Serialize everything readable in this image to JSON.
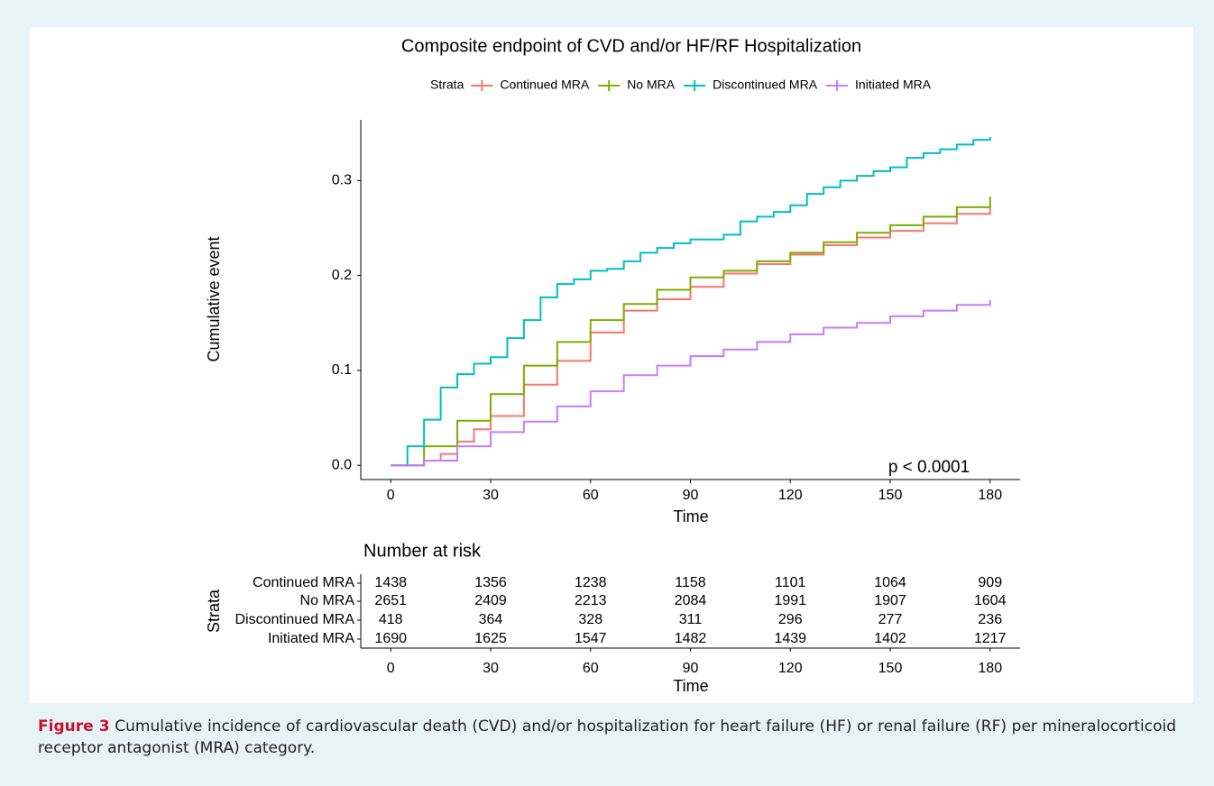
{
  "chart_data": [
    {
      "type": "line",
      "step": true,
      "title": "Composite endpoint of CVD and/or HF/RF Hospitalization",
      "legend_title": "Strata",
      "x_label": "Time",
      "y_label": "Cumulative event",
      "annotation": "p < 0.0001",
      "xlim": [
        -9,
        189
      ],
      "ylim": [
        -0.015,
        0.364
      ],
      "xticks": [
        0,
        30,
        60,
        90,
        120,
        150,
        180
      ],
      "yticks": [
        {
          "value": 0,
          "label": "0.0"
        },
        0.1,
        0.2,
        0.3
      ],
      "series": [
        {
          "name": "Continued MRA",
          "color": "#F8766D",
          "x": [
            0,
            10,
            15,
            20,
            25,
            30,
            40,
            50,
            60,
            70,
            80,
            90,
            100,
            110,
            120,
            130,
            140,
            150,
            160,
            170,
            180
          ],
          "values": [
            0,
            0.005,
            0.012,
            0.025,
            0.038,
            0.052,
            0.085,
            0.11,
            0.14,
            0.163,
            0.175,
            0.188,
            0.202,
            0.212,
            0.222,
            0.232,
            0.24,
            0.247,
            0.255,
            0.265,
            0.272
          ]
        },
        {
          "name": "No MRA",
          "color": "#7CAE00",
          "x": [
            0,
            10,
            20,
            30,
            40,
            50,
            60,
            70,
            80,
            90,
            100,
            110,
            120,
            130,
            140,
            150,
            160,
            170,
            180
          ],
          "values": [
            0,
            0.02,
            0.047,
            0.075,
            0.105,
            0.13,
            0.153,
            0.17,
            0.185,
            0.198,
            0.205,
            0.215,
            0.224,
            0.235,
            0.245,
            0.253,
            0.262,
            0.272,
            0.283
          ]
        },
        {
          "name": "Discontinued MRA",
          "color": "#00BFC4",
          "x": [
            0,
            5,
            10,
            15,
            20,
            25,
            30,
            35,
            40,
            45,
            50,
            55,
            60,
            65,
            70,
            75,
            80,
            85,
            90,
            95,
            100,
            105,
            110,
            115,
            120,
            125,
            130,
            135,
            140,
            145,
            150,
            155,
            160,
            165,
            170,
            175,
            180
          ],
          "values": [
            0,
            0.02,
            0.048,
            0.082,
            0.096,
            0.107,
            0.114,
            0.134,
            0.153,
            0.177,
            0.191,
            0.196,
            0.205,
            0.207,
            0.215,
            0.224,
            0.229,
            0.234,
            0.238,
            0.238,
            0.243,
            0.257,
            0.262,
            0.267,
            0.274,
            0.286,
            0.293,
            0.3,
            0.305,
            0.31,
            0.314,
            0.324,
            0.329,
            0.333,
            0.338,
            0.343,
            0.346
          ]
        },
        {
          "name": "Initiated MRA",
          "color": "#C77CFF",
          "x": [
            0,
            10,
            20,
            30,
            40,
            50,
            60,
            70,
            80,
            90,
            100,
            110,
            120,
            130,
            140,
            150,
            160,
            170,
            180
          ],
          "values": [
            0,
            0.005,
            0.02,
            0.035,
            0.046,
            0.062,
            0.078,
            0.095,
            0.105,
            0.115,
            0.122,
            0.13,
            0.138,
            0.145,
            0.15,
            0.157,
            0.163,
            0.169,
            0.174
          ]
        }
      ]
    },
    {
      "type": "table",
      "title": "Number at risk",
      "x_label": "Time",
      "y_label": "Strata",
      "xlim": [
        -9,
        189
      ],
      "xticks": [
        0,
        30,
        60,
        90,
        120,
        150,
        180
      ],
      "series": [
        {
          "name": "Continued MRA",
          "color": "#F8766D",
          "values": [
            1438,
            1356,
            1238,
            1158,
            1101,
            1064,
            909
          ]
        },
        {
          "name": "No MRA",
          "color": "#7CAE00",
          "values": [
            2651,
            2409,
            2213,
            2084,
            1991,
            1907,
            1604
          ]
        },
        {
          "name": "Discontinued MRA",
          "color": "#00BFC4",
          "values": [
            418,
            364,
            328,
            311,
            296,
            277,
            236
          ]
        },
        {
          "name": "Initiated MRA",
          "color": "#C77CFF",
          "values": [
            1690,
            1625,
            1547,
            1482,
            1439,
            1402,
            1217
          ]
        }
      ]
    }
  ],
  "caption": {
    "label": "Figure 3",
    "text": "Cumulative incidence of cardiovascular death (CVD) and/or hospitalization for heart failure (HF) or renal failure (RF) per mineralocorticoid receptor antagonist (MRA) category."
  }
}
